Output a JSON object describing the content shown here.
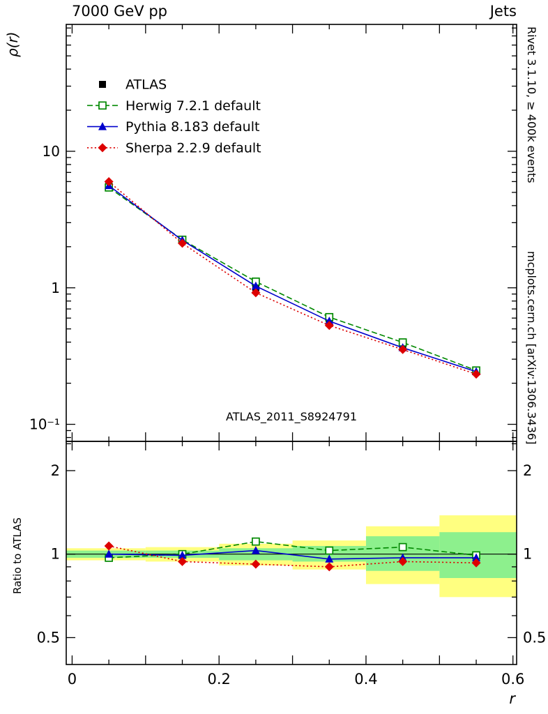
{
  "chart_data": {
    "type": "line",
    "title_left": "7000 GeV pp",
    "title_right": "Jets",
    "xlabel": "r",
    "ylabel_main": "ρ(r)",
    "ylabel_ratio": "Ratio to ATLAS",
    "watermark": "ATLAS_2011_S8924791",
    "right_label_top": "Rivet 3.1.10, ≥ 400k events",
    "right_label_bottom": "mcplots.cern.ch [arXiv:1306.3436]",
    "x_range": [
      0,
      0.6
    ],
    "y_range_main": [
      0.075,
      85
    ],
    "y_range_ratio": [
      0.4,
      2.55
    ],
    "y_scale": "log",
    "legend_position": "top-left-inside",
    "x": [
      0.05,
      0.15,
      0.25,
      0.35,
      0.45,
      0.55
    ],
    "x_ticks": [
      {
        "v": 0.0,
        "label": "0"
      },
      {
        "v": 0.2,
        "label": "0.2"
      },
      {
        "v": 0.4,
        "label": "0.4"
      },
      {
        "v": 0.6,
        "label": "0.6"
      }
    ],
    "x_minor_step": 0.05,
    "y_ticks_main": [
      {
        "v": 10,
        "label": "10"
      },
      {
        "v": 1,
        "label": "1"
      },
      {
        "v": 0.1,
        "label": "10⁻¹"
      }
    ],
    "y_ticks_ratio": [
      {
        "v": 2,
        "label": "2"
      },
      {
        "v": 1,
        "label": "1"
      },
      {
        "v": 0.5,
        "label": "0.5"
      }
    ],
    "y_minor_ratio": [
      0.6,
      0.7,
      0.8,
      0.9,
      2.5
    ],
    "series": [
      {
        "name": "ATLAS",
        "color": "#000000",
        "marker": "square-filled",
        "line": "none",
        "values": [
          5.6,
          2.25,
          1.0,
          0.59,
          0.375,
          0.25
        ]
      },
      {
        "name": "Herwig 7.2.1 default",
        "color": "#008800",
        "marker": "square-open",
        "line": "dashed",
        "values": [
          5.43,
          2.25,
          1.11,
          0.61,
          0.398,
          0.248
        ],
        "ratio": [
          0.97,
          1.0,
          1.11,
          1.03,
          1.06,
          0.99
        ]
      },
      {
        "name": "Pythia 8.183 default",
        "color": "#0000cc",
        "marker": "triangle-filled",
        "line": "solid",
        "values": [
          5.6,
          2.23,
          1.03,
          0.57,
          0.364,
          0.243
        ],
        "ratio": [
          1.0,
          0.99,
          1.03,
          0.96,
          0.97,
          0.97
        ]
      },
      {
        "name": "Sherpa 2.2.9 default",
        "color": "#dd0000",
        "marker": "diamond-filled",
        "line": "dotted",
        "values": [
          5.99,
          2.12,
          0.92,
          0.53,
          0.353,
          0.233
        ],
        "ratio": [
          1.07,
          0.94,
          0.92,
          0.9,
          0.94,
          0.93
        ]
      }
    ],
    "ratio_bands": {
      "yellow_color": "#ffff80",
      "green_color": "#8df08d",
      "segments": [
        {
          "x0": 0.0,
          "x1": 0.1,
          "yellow": [
            0.95,
            1.05
          ],
          "green": [
            0.97,
            1.03
          ]
        },
        {
          "x0": 0.1,
          "x1": 0.2,
          "yellow": [
            0.94,
            1.06
          ],
          "green": [
            0.97,
            1.03
          ]
        },
        {
          "x0": 0.2,
          "x1": 0.3,
          "yellow": [
            0.91,
            1.09
          ],
          "green": [
            0.95,
            1.05
          ]
        },
        {
          "x0": 0.3,
          "x1": 0.4,
          "yellow": [
            0.88,
            1.12
          ],
          "green": [
            0.94,
            1.07
          ]
        },
        {
          "x0": 0.4,
          "x1": 0.5,
          "yellow": [
            0.78,
            1.26
          ],
          "green": [
            0.87,
            1.16
          ]
        },
        {
          "x0": 0.5,
          "x1": 0.6,
          "yellow": [
            0.7,
            1.38
          ],
          "green": [
            0.82,
            1.2
          ]
        }
      ]
    }
  }
}
